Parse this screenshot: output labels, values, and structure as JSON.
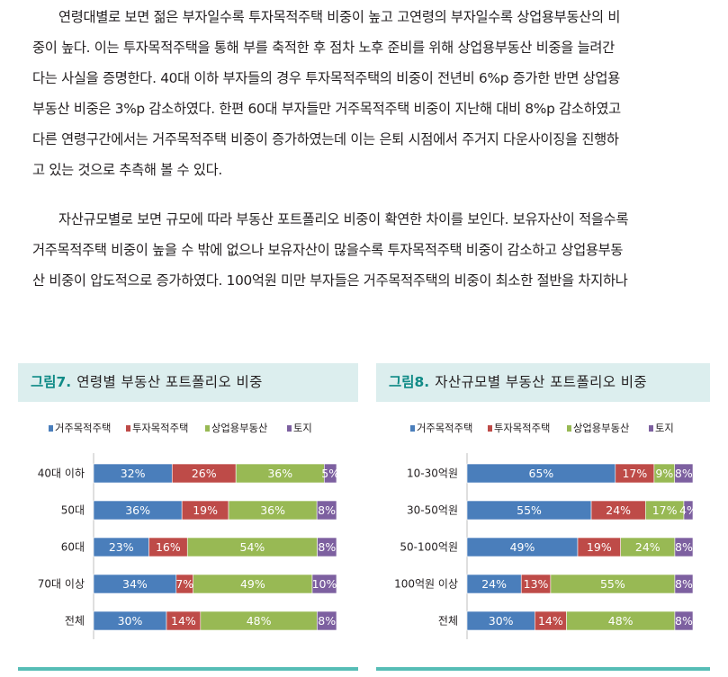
{
  "paragraphs": [
    {
      "lines": [
        "연령대별로 보면 젊은 부자일수록 투자목적주택 비중이 높고 고연령의 부자일수록 상업용부동산의 비",
        "중이 높다. 이는 투자목적주택을 통해 부를 축적한 후 점차 노후 준비를 위해 상업용부동산 비중을 늘려간",
        "다는 사실을 증명한다. 40대 이하 부자들의 경우 투자목적주택의 비중이 전년비 6%p 증가한 반면 상업용",
        "부동산 비중은 3%p 감소하였다. 한편 60대 부자들만 거주목적주택 비중이 지난해 대비 8%p 감소하였고",
        "다른 연령구간에서는 거주목적주택 비중이 증가하였는데 이는 은퇴 시점에서 주거지 다운사이징을 진행하",
        "고 있는 것으로 추측해 볼 수 있다."
      ]
    },
    {
      "lines": [
        "자산규모별로 보면 규모에 따라 부동산 포트폴리오 비중이 확연한 차이를 보인다. 보유자산이 적을수록",
        "거주목적주택 비중이 높을 수 밖에 없으나 보유자산이 많을수록 투자목적주택 비중이 감소하고 상업용부동",
        "산 비중이 압도적으로 증가하였다. 100억원 미만 부자들은 거주목적주택의 비중이 최소한 절반을 차지하나"
      ]
    }
  ],
  "colors": {
    "header_bg": "#dceeee",
    "figure_number": "#0f8a86",
    "bottom_rule": "#56bdb6",
    "series": [
      "#4a7ebb",
      "#be4b48",
      "#98b954",
      "#7d60a0"
    ]
  },
  "figures": [
    {
      "number": "그림7.",
      "title": "연령별 부동산 포트폴리오 비중"
    },
    {
      "number": "그림8.",
      "title": "자산규모별 부동산 포트폴리오 비중"
    }
  ],
  "chart_data": [
    {
      "type": "bar",
      "orientation": "horizontal",
      "stacked": true,
      "percent_stacked": true,
      "title": "연령별 부동산 포트폴리오 비중",
      "legend_position": "top",
      "categories": [
        "40대 이하",
        "50대",
        "60대",
        "70대 이상",
        "전체"
      ],
      "series": [
        {
          "name": "거주목적주택",
          "values": [
            32,
            36,
            23,
            34,
            30
          ],
          "labels": [
            "32%",
            "36%",
            "23%",
            "34%",
            "30%"
          ]
        },
        {
          "name": "투자목적주택",
          "values": [
            26,
            19,
            16,
            7,
            14
          ],
          "labels": [
            "26%",
            "19%",
            "16%",
            "7%",
            "14%"
          ]
        },
        {
          "name": "상업용부동산",
          "values": [
            36,
            36,
            54,
            49,
            48
          ],
          "labels": [
            "36%",
            "36%",
            "54%",
            "49%",
            "48%"
          ]
        },
        {
          "name": "토지",
          "values": [
            5,
            8,
            8,
            10,
            8
          ],
          "labels": [
            "5%",
            "8%",
            "8%",
            "10%",
            "8%"
          ]
        }
      ]
    },
    {
      "type": "bar",
      "orientation": "horizontal",
      "stacked": true,
      "percent_stacked": true,
      "title": "자산규모별 부동산 포트폴리오 비중",
      "legend_position": "top",
      "categories": [
        "10-30억원",
        "30-50억원",
        "50-100억원",
        "100억원 이상",
        "전체"
      ],
      "series": [
        {
          "name": "거주목적주택",
          "values": [
            65,
            55,
            49,
            24,
            30
          ],
          "labels": [
            "65%",
            "55%",
            "49%",
            "24%",
            "30%"
          ]
        },
        {
          "name": "투자목적주택",
          "values": [
            17,
            24,
            19,
            13,
            14
          ],
          "labels": [
            "17%",
            "24%",
            "19%",
            "13%",
            "14%"
          ]
        },
        {
          "name": "상업용부동산",
          "values": [
            9,
            17,
            24,
            55,
            48
          ],
          "labels": [
            "9%",
            "17%",
            "24%",
            "55%",
            "48%"
          ]
        },
        {
          "name": "토지",
          "values": [
            8,
            4,
            8,
            8,
            8
          ],
          "labels": [
            "8%",
            "4%",
            "8%",
            "8%",
            "8%"
          ]
        }
      ]
    }
  ]
}
